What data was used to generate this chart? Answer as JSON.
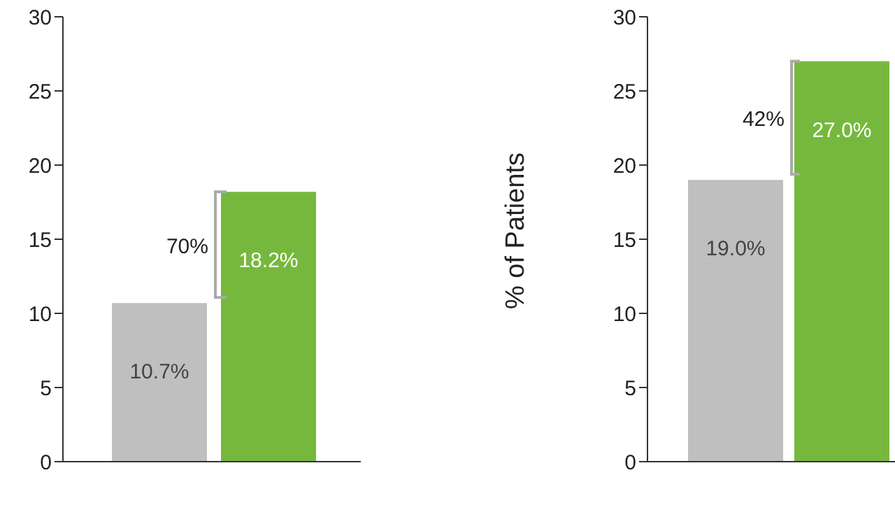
{
  "chart_data": [
    {
      "type": "bar",
      "categories": [
        null,
        null
      ],
      "values": [
        10.7,
        18.2
      ],
      "colors": [
        "#bfbfbf",
        "#76b83d"
      ],
      "value_labels": [
        "10.7%",
        "18.2%"
      ],
      "ylim": [
        0,
        30
      ],
      "yticks": [
        0,
        5,
        10,
        15,
        20,
        25,
        30
      ],
      "annotations": [
        "70%"
      ]
    },
    {
      "type": "bar",
      "categories": [
        null,
        null
      ],
      "values": [
        19.0,
        27.0
      ],
      "colors": [
        "#bfbfbf",
        "#76b83d"
      ],
      "value_labels": [
        "19.0%",
        "27.0%"
      ],
      "ylim": [
        0,
        30
      ],
      "yticks": [
        0,
        5,
        10,
        15,
        20,
        25,
        30
      ],
      "ylabel": "% of Patients",
      "annotations": [
        "42%"
      ]
    }
  ]
}
